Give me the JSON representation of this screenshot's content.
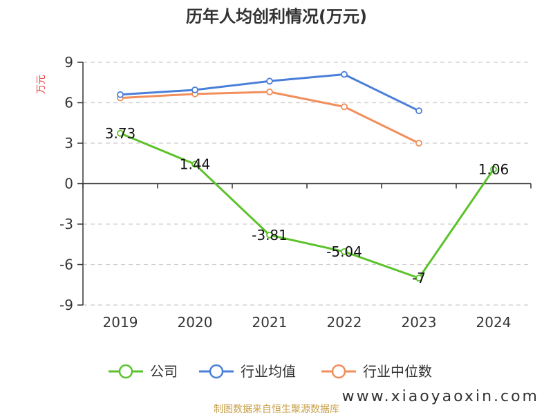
{
  "chart_data": {
    "type": "line",
    "title": "历年人均创利情况(万元)",
    "ylabel": "万元",
    "xlabel": "",
    "categories": [
      "2019",
      "2020",
      "2021",
      "2022",
      "2023",
      "2024"
    ],
    "ylim": [
      -9,
      9
    ],
    "yticks": [
      "9",
      "6",
      "3",
      "0",
      "-3",
      "-6",
      "-9"
    ],
    "ytick_values": [
      9,
      6,
      3,
      0,
      -3,
      -6,
      -9
    ],
    "grid": true,
    "legend_position": "bottom",
    "series": [
      {
        "name": "公司",
        "color": "#5bc22a",
        "values": [
          3.73,
          1.44,
          -3.81,
          -5.04,
          -7,
          1.06
        ],
        "labels": [
          "3.73",
          "1.44",
          "-3.81",
          "-5.04",
          "-7",
          "1.06"
        ]
      },
      {
        "name": "行业均值",
        "color": "#4a7fd9",
        "values": [
          6.6,
          6.95,
          7.6,
          8.1,
          5.4,
          null
        ]
      },
      {
        "name": "行业中位数",
        "color": "#f28e5b",
        "values": [
          6.35,
          6.65,
          6.8,
          5.7,
          3.0,
          null
        ]
      }
    ]
  },
  "footer": {
    "source": "制图数据来自恒生聚源数据库",
    "watermark": "www.xiaoyaoxin.com"
  }
}
